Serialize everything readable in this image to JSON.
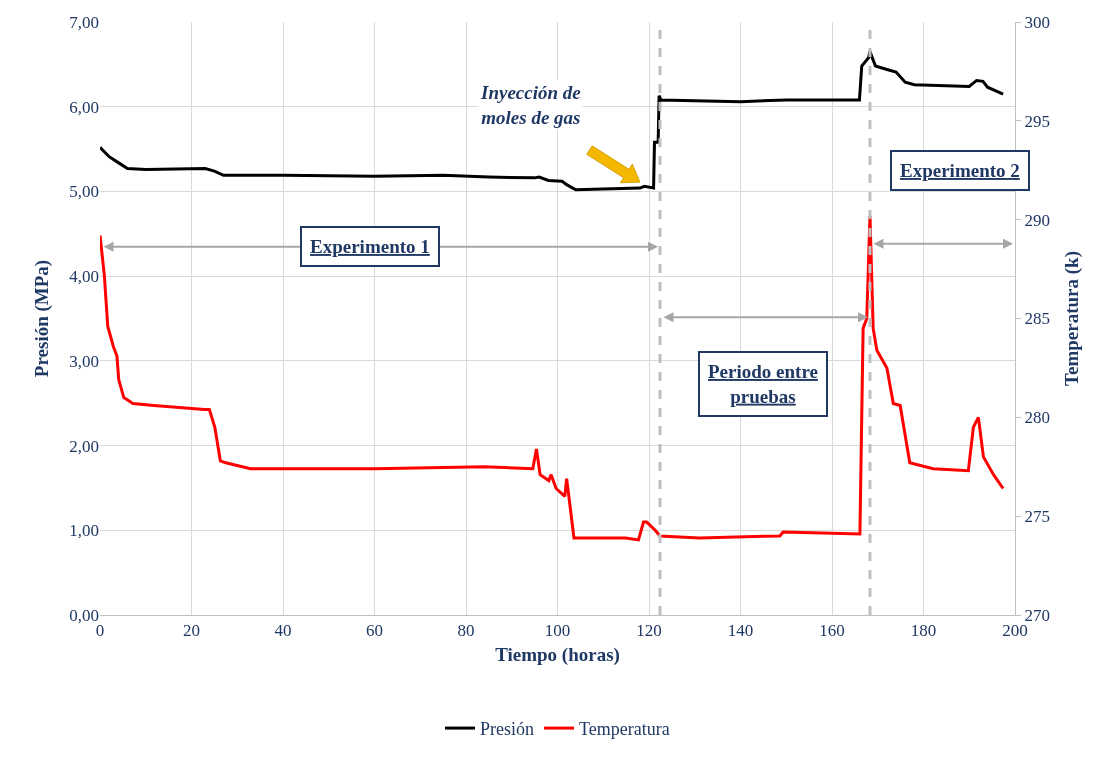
{
  "chart_data": {
    "type": "line",
    "xlabel": "Tiempo (horas)",
    "ylabel": "Presión (MPa)",
    "y2label": "Temperatura (k)",
    "xlim": [
      0,
      200
    ],
    "xticks": [
      0,
      20,
      40,
      60,
      80,
      100,
      120,
      140,
      160,
      180,
      200
    ],
    "ylim": [
      0,
      7
    ],
    "yticks": [
      {
        "value": 0,
        "label": "0,00"
      },
      {
        "value": 1,
        "label": "1,00"
      },
      {
        "value": 2,
        "label": "2,00"
      },
      {
        "value": 3,
        "label": "3,00"
      },
      {
        "value": 4,
        "label": "4,00"
      },
      {
        "value": 5,
        "label": "5,00"
      },
      {
        "value": 6,
        "label": "6,00"
      },
      {
        "value": 7,
        "label": "7,00"
      }
    ],
    "y2lim": [
      270,
      300
    ],
    "y2ticks": [
      270,
      275,
      280,
      285,
      290,
      295,
      300
    ],
    "grid": true,
    "legend": "bottom",
    "line_style": "solid",
    "series": [
      {
        "name": "Presión",
        "color": "#000000",
        "x": [
          0,
          2,
          4,
          6,
          10,
          23,
          25,
          27,
          40,
          60,
          75,
          85,
          95,
          96,
          98,
          101,
          102,
          104,
          110,
          118,
          119,
          121,
          121.2,
          122,
          122.2,
          122.6,
          140,
          150,
          166,
          166.5,
          168,
          168.3,
          169.5,
          172,
          174,
          176,
          178,
          190,
          191.6,
          193,
          194,
          197.4
        ],
        "values": [
          5.52,
          5.41,
          5.34,
          5.27,
          5.26,
          5.27,
          5.24,
          5.19,
          5.19,
          5.18,
          5.19,
          5.17,
          5.16,
          5.17,
          5.13,
          5.12,
          5.08,
          5.02,
          5.03,
          5.04,
          5.06,
          5.04,
          5.58,
          5.58,
          6.13,
          6.08,
          6.06,
          6.08,
          6.08,
          6.48,
          6.58,
          6.65,
          6.48,
          6.44,
          6.41,
          6.29,
          6.26,
          6.24,
          6.31,
          6.3,
          6.23,
          6.15
        ]
      },
      {
        "name": "Temperatura",
        "color": "#ff0000",
        "axis": "y2",
        "x": [
          0,
          0.15,
          0.94,
          1.7,
          2.9,
          3.7,
          4.1,
          5.2,
          7.2,
          11.8,
          22.8,
          23.9,
          25.1,
          26.3,
          27.5,
          32.9,
          60,
          84,
          94.6,
          95.4,
          96.2,
          98.1,
          98.6,
          99.7,
          101.6,
          102.0,
          102.8,
          103.6,
          114.9,
          117.7,
          118.8,
          119.5,
          121.3,
          122.4,
          131,
          148.6,
          149.3,
          166.1,
          166.8,
          167.6,
          168.3,
          169.0,
          169.8,
          172.0,
          173.4,
          174.9,
          177.0,
          182.1,
          189.8,
          190.9,
          192.0,
          193.1,
          195.3,
          197.4
        ],
        "values": [
          289.2,
          288.9,
          287.2,
          284.6,
          283.6,
          283.1,
          281.9,
          281.0,
          280.7,
          280.6,
          280.4,
          280.4,
          279.5,
          277.8,
          277.7,
          277.4,
          277.4,
          277.5,
          277.4,
          278.4,
          277.1,
          276.8,
          277.1,
          276.4,
          276.0,
          276.9,
          275.4,
          273.9,
          273.9,
          273.8,
          274.7,
          274.7,
          274.3,
          274.0,
          273.9,
          274.0,
          274.2,
          274.1,
          284.5,
          285.0,
          290.2,
          284.5,
          283.4,
          282.5,
          280.7,
          280.6,
          277.7,
          277.4,
          277.3,
          279.5,
          280.0,
          278.0,
          277.1,
          276.4
        ]
      }
    ],
    "ref_lines": [
      {
        "axis": "x",
        "value": 122.4,
        "color": "#bfbfbf",
        "line_style": "dashed"
      },
      {
        "axis": "x",
        "value": 168.3,
        "color": "#bfbfbf",
        "line_style": "dashed"
      }
    ],
    "annotations": [
      "Inyección de moles de gas",
      "Experimento 1",
      "Periodo entre pruebas",
      "Experimento 2"
    ]
  }
}
